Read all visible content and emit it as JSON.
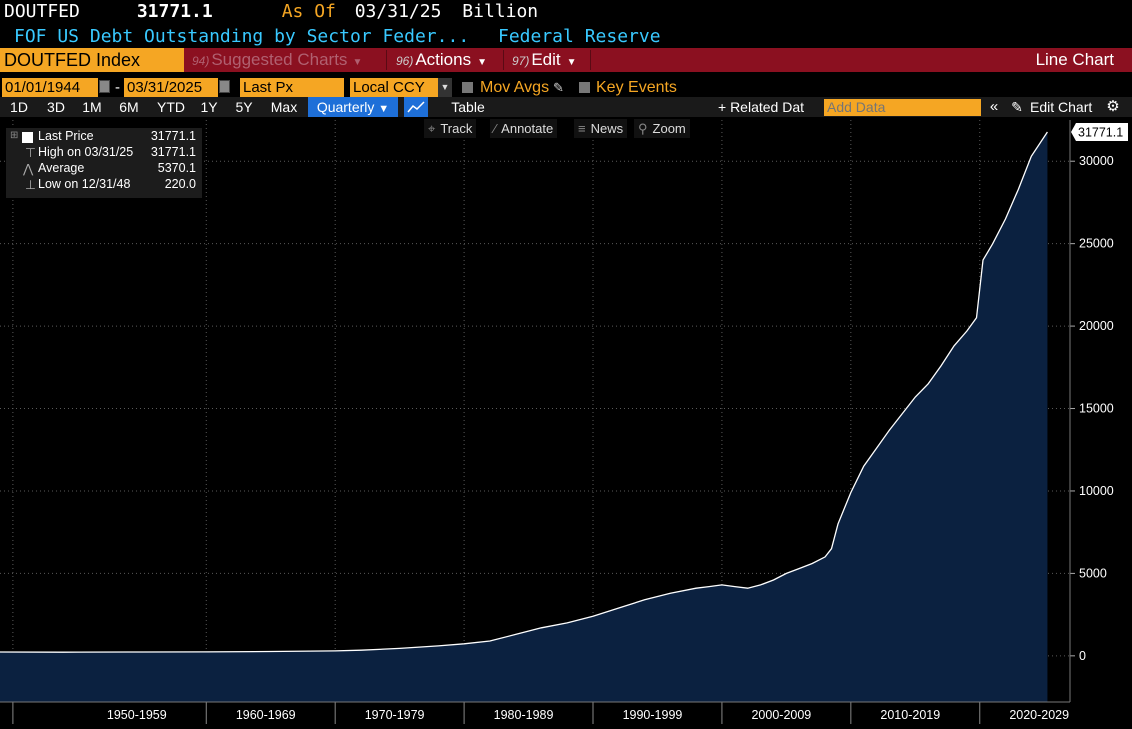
{
  "header": {
    "ticker": "DOUTFED",
    "last_value": "31771.1",
    "as_of_label": "As Of",
    "as_of_date": "03/31/25",
    "unit": "Billion",
    "description": "FOF US Debt Outstanding by Sector Feder...",
    "source": "Federal Reserve"
  },
  "menubar": {
    "security": "DOUTFED Index",
    "suggested_num": "94)",
    "suggested_label": "Suggested Charts",
    "actions_num": "96)",
    "actions_label": "Actions",
    "edit_num": "97)",
    "edit_label": "Edit",
    "chart_type": "Line Chart"
  },
  "controls": {
    "start_date": "01/01/1944",
    "dash": "-",
    "end_date": "03/31/2025",
    "field": "Last Px",
    "currency": "Local CCY",
    "mov_avgs": "Mov Avgs",
    "key_events": "Key Events"
  },
  "periods": [
    "1D",
    "3D",
    "1M",
    "6M",
    "YTD",
    "1Y",
    "5Y",
    "Max"
  ],
  "frequency": "Quarterly",
  "table_label": "Table",
  "related_data": "+ Related Dat",
  "add_data_placeholder": "Add Data",
  "edit_chart": "Edit Chart",
  "tools": {
    "track": "Track",
    "annotate": "Annotate",
    "news": "News",
    "zoom": "Zoom"
  },
  "legend": {
    "last_price_label": "Last Price",
    "last_price_value": "31771.1",
    "high_label": "High on 03/31/25",
    "high_value": "31771.1",
    "average_label": "Average",
    "average_value": "5370.1",
    "low_label": "Low on 12/31/48",
    "low_value": "220.0"
  },
  "colors": {
    "accent_orange": "#f5a623",
    "menu_red": "#8b1020",
    "title_cyan": "#39c9ff",
    "area_fill": "#0b2140",
    "line": "#ffffff"
  },
  "chart_data": {
    "type": "area",
    "xlabel": "",
    "ylabel": "",
    "x_tick_labels": [
      "1950-1959",
      "1960-1969",
      "1970-1979",
      "1980-1989",
      "1990-1999",
      "2000-2009",
      "2010-2019",
      "2020-2029"
    ],
    "y_ticks": [
      0,
      5000,
      10000,
      15000,
      20000,
      25000,
      30000
    ],
    "ylim": [
      -2800,
      32500
    ],
    "xlim": [
      1944.0,
      2027.0
    ],
    "last_value_label": "31771.1",
    "grid": true,
    "legend_position": "top-left",
    "series": [
      {
        "values": [
          [
            1944.0,
            230
          ],
          [
            1948.9,
            220
          ],
          [
            1950,
            225
          ],
          [
            1955,
            235
          ],
          [
            1960,
            240
          ],
          [
            1965,
            260
          ],
          [
            1970,
            300
          ],
          [
            1972,
            340
          ],
          [
            1975,
            450
          ],
          [
            1978,
            600
          ],
          [
            1980,
            730
          ],
          [
            1982,
            900
          ],
          [
            1984,
            1300
          ],
          [
            1986,
            1700
          ],
          [
            1988,
            2000
          ],
          [
            1990,
            2400
          ],
          [
            1992,
            2900
          ],
          [
            1994,
            3400
          ],
          [
            1996,
            3800
          ],
          [
            1998,
            4100
          ],
          [
            1999,
            4200
          ],
          [
            2000,
            4300
          ],
          [
            2001,
            4200
          ],
          [
            2002,
            4100
          ],
          [
            2003,
            4300
          ],
          [
            2004,
            4600
          ],
          [
            2005,
            5000
          ],
          [
            2006,
            5300
          ],
          [
            2007,
            5600
          ],
          [
            2008,
            6000
          ],
          [
            2008.5,
            6500
          ],
          [
            2009,
            8000
          ],
          [
            2010,
            9900
          ],
          [
            2011,
            11500
          ],
          [
            2012,
            12600
          ],
          [
            2013,
            13700
          ],
          [
            2014,
            14700
          ],
          [
            2015,
            15700
          ],
          [
            2016,
            16500
          ],
          [
            2017,
            17600
          ],
          [
            2018,
            18800
          ],
          [
            2019,
            19700
          ],
          [
            2019.75,
            20500
          ],
          [
            2020.25,
            24000
          ],
          [
            2021,
            25000
          ],
          [
            2022,
            26500
          ],
          [
            2023,
            28300
          ],
          [
            2024,
            30300
          ],
          [
            2025.25,
            31771.1
          ]
        ]
      }
    ]
  }
}
